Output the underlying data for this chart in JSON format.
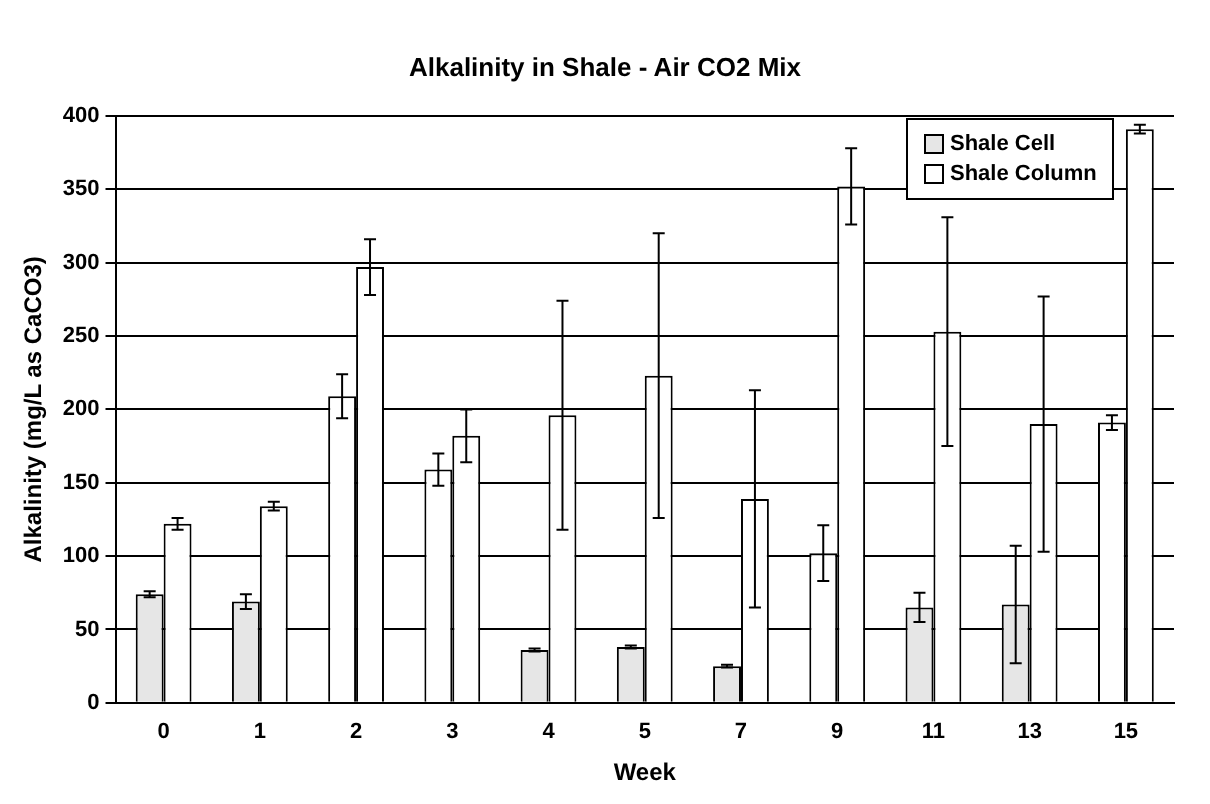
{
  "chart_data": {
    "type": "bar",
    "title": "Alkalinity in Shale - Air CO2 Mix",
    "xlabel": "Week",
    "ylabel": "Alkalinity (mg/L as CaCO3)",
    "categories": [
      "0",
      "1",
      "2",
      "3",
      "4",
      "5",
      "7",
      "9",
      "11",
      "13",
      "15"
    ],
    "series": [
      {
        "name": "Shale Cell",
        "color": "#e6e6e6",
        "colors": [
          "#e6e6e6",
          "#e6e6e6",
          "#ffffff",
          "#ffffff",
          "#e6e6e6",
          "#e6e6e6",
          "#e6e6e6",
          "#ffffff",
          "#e6e6e6",
          "#e6e6e6",
          "#ffffff"
        ],
        "values": [
          74,
          69,
          209,
          159,
          36,
          38,
          25,
          102,
          65,
          67,
          191
        ],
        "errors": [
          2,
          5,
          15,
          11,
          1,
          1,
          1,
          19,
          10,
          40,
          5
        ]
      },
      {
        "name": "Shale Column",
        "color": "#ffffff",
        "values": [
          122,
          134,
          297,
          182,
          196,
          223,
          139,
          352,
          253,
          190,
          391
        ],
        "errors": [
          4,
          3,
          19,
          18,
          78,
          97,
          74,
          26,
          78,
          87,
          3
        ]
      }
    ],
    "ylim": [
      0,
      400
    ],
    "yticks": [
      0,
      50,
      100,
      150,
      200,
      250,
      300,
      350,
      400
    ],
    "grid": "y",
    "legend": "top right"
  }
}
